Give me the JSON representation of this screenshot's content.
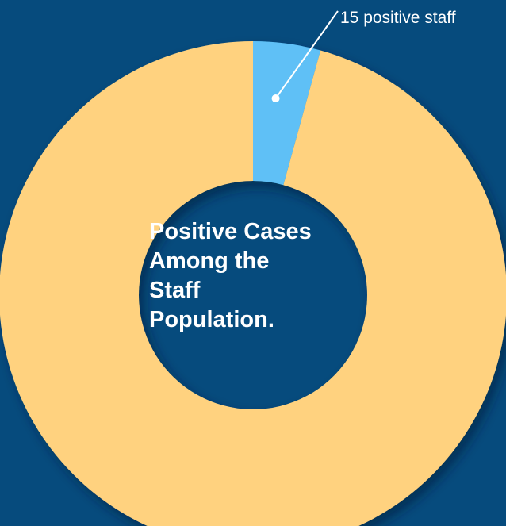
{
  "chart_data": {
    "type": "pie",
    "donut": true,
    "slices": [
      {
        "value": 15,
        "color": "#5ec0f6"
      },
      {
        "value": 335,
        "color": "#ffd27f"
      }
    ],
    "center_title_lines": [
      "Positive Cases",
      "Among the",
      "Staff",
      "Population."
    ],
    "annotations": [
      {
        "text": "15 positive staff",
        "slice_index": 0
      }
    ]
  },
  "colors": {
    "background": "#064b7d",
    "positive": "#5ec0f6",
    "remaining": "#ffd27f",
    "text": "#ffffff"
  }
}
